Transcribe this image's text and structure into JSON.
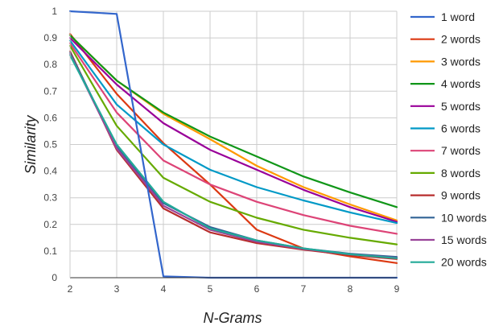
{
  "chart_data": {
    "type": "line",
    "title": "",
    "xlabel": "N-Grams",
    "ylabel": "Similarity",
    "x": [
      2,
      3,
      4,
      5,
      6,
      7,
      8,
      9
    ],
    "xlim": [
      2,
      9
    ],
    "ylim": [
      0,
      1
    ],
    "x_ticks": [
      "2",
      "3",
      "4",
      "5",
      "6",
      "7",
      "8",
      "9"
    ],
    "y_ticks": [
      "0",
      "0.1",
      "0.2",
      "0.3",
      "0.4",
      "0.5",
      "0.6",
      "0.7",
      "0.8",
      "0.9",
      "1"
    ],
    "grid": true,
    "legend_position": "right",
    "series": [
      {
        "name": "1 word",
        "color": "#3366cc",
        "values": [
          1.0,
          0.99,
          0.005,
          0.0,
          0.0,
          0.0,
          0.0,
          0.0
        ]
      },
      {
        "name": "2 words",
        "color": "#dc3912",
        "values": [
          0.915,
          0.69,
          0.505,
          0.35,
          0.18,
          0.11,
          0.08,
          0.055
        ]
      },
      {
        "name": "3 words",
        "color": "#ff9900",
        "values": [
          0.91,
          0.74,
          0.615,
          0.52,
          0.42,
          0.34,
          0.275,
          0.215
        ]
      },
      {
        "name": "4 words",
        "color": "#109618",
        "values": [
          0.91,
          0.74,
          0.62,
          0.53,
          0.455,
          0.38,
          0.32,
          0.265
        ]
      },
      {
        "name": "5 words",
        "color": "#990099",
        "values": [
          0.9,
          0.725,
          0.58,
          0.48,
          0.405,
          0.33,
          0.265,
          0.21
        ]
      },
      {
        "name": "6 words",
        "color": "#0099c6",
        "values": [
          0.89,
          0.65,
          0.5,
          0.405,
          0.34,
          0.29,
          0.245,
          0.205
        ]
      },
      {
        "name": "7 words",
        "color": "#dd4477",
        "values": [
          0.88,
          0.62,
          0.44,
          0.35,
          0.285,
          0.235,
          0.195,
          0.165
        ]
      },
      {
        "name": "8 words",
        "color": "#66aa00",
        "values": [
          0.87,
          0.57,
          0.375,
          0.285,
          0.225,
          0.18,
          0.15,
          0.125
        ]
      },
      {
        "name": "9 words",
        "color": "#b82e2e",
        "values": [
          0.85,
          0.48,
          0.26,
          0.17,
          0.13,
          0.105,
          0.085,
          0.07
        ]
      },
      {
        "name": "10 words",
        "color": "#316395",
        "values": [
          0.845,
          0.49,
          0.28,
          0.19,
          0.14,
          0.11,
          0.09,
          0.078
        ]
      },
      {
        "name": "15 words",
        "color": "#994499",
        "values": [
          0.84,
          0.485,
          0.27,
          0.18,
          0.135,
          0.108,
          0.088,
          0.074
        ]
      },
      {
        "name": "20 words",
        "color": "#22aa99",
        "values": [
          0.835,
          0.5,
          0.285,
          0.185,
          0.14,
          0.11,
          0.088,
          0.073
        ]
      }
    ]
  }
}
